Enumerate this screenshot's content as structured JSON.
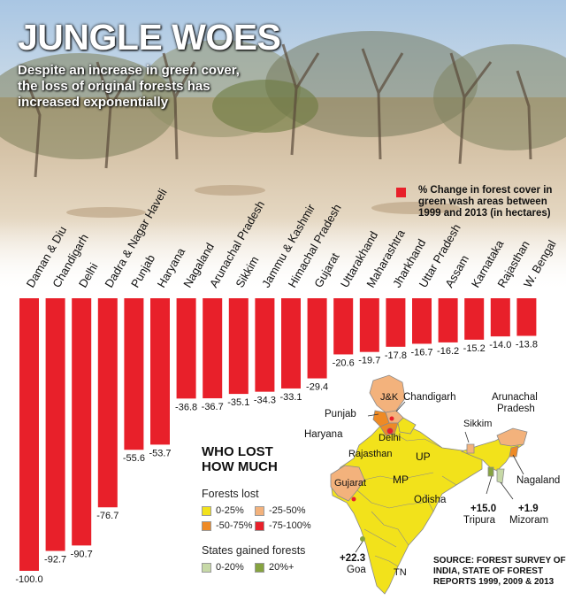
{
  "header": {
    "title": "JUNGLE WOES",
    "subtitle": "Despite an increase in green cover, the loss of original forests has increased exponentially"
  },
  "legend": {
    "label": "% Change in forest cover in green wash areas between 1999 and 2013 (in hectares)",
    "color": "#e8202a"
  },
  "chart_data": {
    "type": "bar",
    "orientation": "vertical-negative",
    "categories": [
      "Daman & Diu",
      "Chandigarh",
      "Delhi",
      "Dadra & Nagar Haveli",
      "Punjab",
      "Haryana",
      "Nagaland",
      "Arunachal Pradesh",
      "Sikkim",
      "Jammu & Kashmir",
      "Himachal Pradesh",
      "Gujarat",
      "Uttarakhand",
      "Maharashtra",
      "Jharkhand",
      "Uttar Pradesh",
      "Assam",
      "Karnataka",
      "Rajasthan",
      "W. Bengal"
    ],
    "values": [
      -100.0,
      -92.7,
      -90.7,
      -76.7,
      -55.6,
      -53.7,
      -36.8,
      -36.7,
      -35.1,
      -34.3,
      -33.1,
      -29.4,
      -20.6,
      -19.7,
      -17.8,
      -16.7,
      -16.2,
      -15.2,
      -14.0,
      -13.8
    ],
    "value_labels": [
      "-100.0",
      "-92.7",
      "-90.7",
      "-76.7",
      "-55.6",
      "-53.7",
      "-36.8",
      "-36.7",
      "-35.1",
      "-34.3",
      "-33.1",
      "-29.4",
      "-20.6",
      "-19.7",
      "-17.8",
      "-16.7",
      "-16.2",
      "-15.2",
      "-14.0",
      "-13.8"
    ],
    "ylim": [
      -100,
      0
    ],
    "bar_color": "#e8202a",
    "grid": false
  },
  "key": {
    "heading_line1": "WHO LOST",
    "heading_line2": "HOW MUCH",
    "forests_lost_label": "Forests lost",
    "forests_lost_items": [
      {
        "label": "0-25%",
        "color": "#f2e21b"
      },
      {
        "label": "-25-50%",
        "color": "#f3b27c"
      },
      {
        "label": "-50-75%",
        "color": "#ee8a25"
      },
      {
        "label": "-75-100%",
        "color": "#e8202a"
      }
    ],
    "gained_label": "States gained forests",
    "gained_items": [
      {
        "label": "0-20%",
        "color": "#c7d9a7"
      },
      {
        "label": "20%+",
        "color": "#86a340"
      }
    ]
  },
  "map": {
    "labels": {
      "jk": "J&K",
      "chandigarh": "Chandigarh",
      "punjab": "Punjab",
      "haryana": "Haryana",
      "delhi": "Delhi",
      "rajasthan": "Rajasthan",
      "up": "UP",
      "gujarat": "Gujarat",
      "mp": "MP",
      "odisha": "Odisha",
      "tn": "TN",
      "sikkim": "Sikkim",
      "arunachal1": "Arunachal",
      "arunachal2": "Pradesh",
      "nagaland": "Nagaland",
      "tripura_value": "+15.0",
      "tripura": "Tripura",
      "mizoram_value": "+1.9",
      "mizoram": "Mizoram",
      "goa_value": "+22.3",
      "goa": "Goa"
    },
    "colors": {
      "yellow": "#f2e21b",
      "light_orange": "#f3b27c",
      "orange": "#ee8a25",
      "red": "#e8202a",
      "light_green": "#c7d9a7",
      "green": "#86a340"
    }
  },
  "source": {
    "text": "SOURCE: FOREST SURVEY OF INDIA, STATE OF FOREST REPORTS 1999, 2009 & 2013"
  }
}
